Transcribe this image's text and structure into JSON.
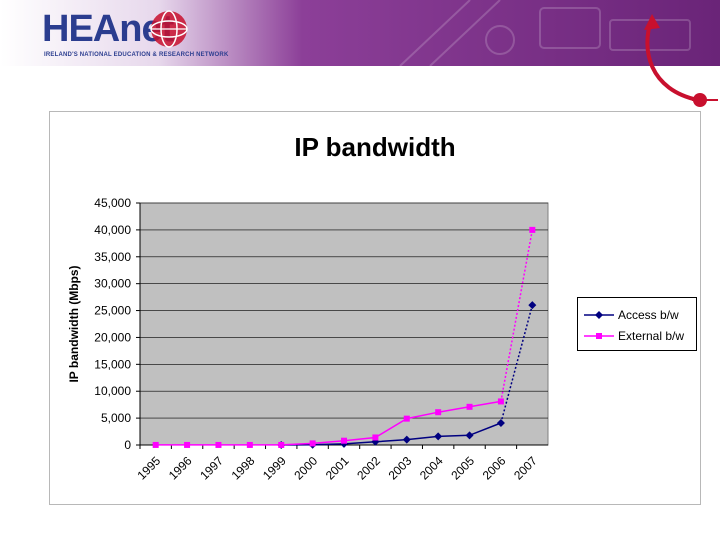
{
  "header": {
    "logo_text": "HEAnet",
    "logo_subtitle": "IRELAND'S NATIONAL EDUCATION & RESEARCH NETWORK"
  },
  "colors": {
    "banner": "#7a2d8a",
    "access": "#000080",
    "external": "#ff00ff",
    "plot_bg": "#c0c0c0",
    "accent_red": "#c8102e"
  },
  "chart_data": {
    "type": "line",
    "title": "IP bandwidth",
    "xlabel": "",
    "ylabel": "IP bandwidth (Mbps)",
    "ylim": [
      0,
      45000
    ],
    "y_ticks": [
      "0",
      "5,000",
      "10,000",
      "15,000",
      "20,000",
      "25,000",
      "30,000",
      "35,000",
      "40,000",
      "45,000"
    ],
    "categories": [
      "1995",
      "1996",
      "1997",
      "1998",
      "1999",
      "2000",
      "2001",
      "2002",
      "2003",
      "2004",
      "2005",
      "2006",
      "2007"
    ],
    "grid": true,
    "legend_position": "right",
    "series": [
      {
        "name": "Access b/w",
        "marker": "diamond",
        "values": [
          null,
          null,
          null,
          null,
          0,
          50,
          200,
          600,
          1000,
          1600,
          1800,
          4100,
          26000
        ],
        "dotted_last_segment": true
      },
      {
        "name": "External b/w",
        "marker": "square",
        "values": [
          10,
          10,
          10,
          10,
          10,
          300,
          800,
          1400,
          4900,
          6100,
          7100,
          8100,
          40000
        ],
        "dotted_last_segment": true
      }
    ]
  }
}
